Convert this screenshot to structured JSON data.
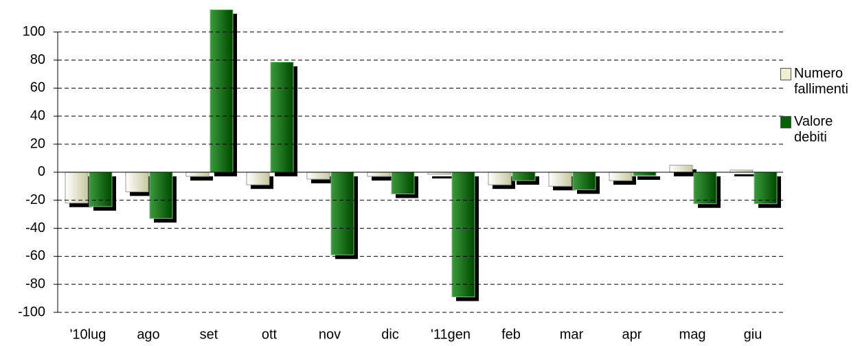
{
  "chart_data": {
    "type": "bar",
    "categories": [
      "'10lug",
      "ago",
      "set",
      "ott",
      "nov",
      "dic",
      "'11gen",
      "feb",
      "mar",
      "apr",
      "mag",
      "giu"
    ],
    "series": [
      {
        "name": "Numero fallimenti",
        "color": "#eeeed0",
        "values": [
          -22,
          -14,
          -3,
          -9,
          -5,
          -3,
          -1.5,
          -9,
          -10,
          -6,
          5,
          1.5
        ]
      },
      {
        "name": "Valore debiti",
        "color": "#006400",
        "values": [
          -24.5,
          -33,
          116,
          78.5,
          -59,
          -15.5,
          -89,
          -6,
          -12.5,
          -2.5,
          -22.5,
          -22.5
        ]
      }
    ],
    "ylim": [
      -100,
      116
    ],
    "yticks": [
      -100,
      -80,
      -60,
      -40,
      -20,
      0,
      20,
      40,
      60,
      80,
      100
    ],
    "grid": true,
    "legend": "right"
  }
}
